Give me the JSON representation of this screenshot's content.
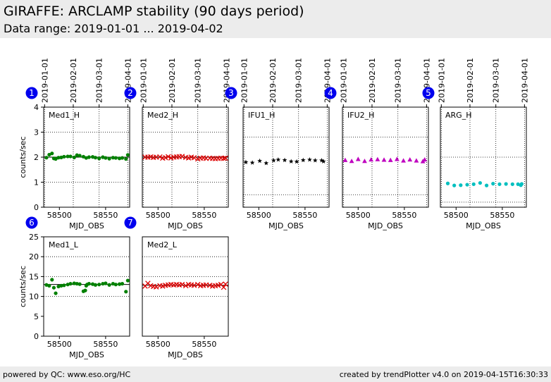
{
  "header": {
    "title": "GIRAFFE: ARCLAMP stability (90 days period)",
    "subtitle": "Data range: 2019-01-01 ... 2019-04-02"
  },
  "footer": {
    "left": "powered by QC: www.eso.org/HC",
    "right": "created by trendPlotter v4.0 on 2019-04-15T16:30:33"
  },
  "colors": {
    "green": "#008000",
    "red": "#dd0000",
    "black": "#000000",
    "magenta": "#bf00bf",
    "cyan": "#00bfbf",
    "badge": "#0000ee"
  },
  "chart_data": [
    {
      "type": "scatter",
      "number": "1",
      "label": "Med1_H",
      "marker": "circle",
      "color": "#008000",
      "xlabel": "MJD_OBS",
      "ylabel": "counts/sec",
      "xlim": [
        58483,
        58576
      ],
      "ylim": [
        0,
        4
      ],
      "yticks": [
        0,
        1,
        2,
        3,
        4
      ],
      "xticks": [
        58500,
        58550
      ],
      "hlines": [
        1,
        2,
        3
      ],
      "reference": 2,
      "date_ticks": [
        "2019-01-01",
        "2019-02-01",
        "2019-03-01",
        "2019-04-01"
      ],
      "x": [
        58486,
        58489,
        58492,
        58494,
        58496,
        58499,
        58502,
        58505,
        58509,
        58512,
        58516,
        58519,
        58522,
        58526,
        58529,
        58532,
        58536,
        58539,
        58543,
        58547,
        58550,
        58554,
        58558,
        58561,
        58565,
        58568,
        58572,
        58574
      ],
      "y": [
        1.98,
        2.1,
        2.15,
        1.95,
        1.93,
        1.98,
        1.99,
        2.02,
        2.03,
        2.03,
        1.99,
        2.08,
        2.06,
        2.02,
        1.97,
        2.0,
        2.01,
        1.98,
        1.95,
        2.0,
        1.97,
        1.94,
        1.98,
        1.97,
        1.95,
        1.97,
        1.93,
        2.09
      ]
    },
    {
      "type": "scatter",
      "number": "2",
      "label": "Med2_H",
      "marker": "x",
      "color": "#dd0000",
      "xlabel": "MJD_OBS",
      "ylabel": "",
      "xlim": [
        58483,
        58576
      ],
      "ylim": [
        0,
        4
      ],
      "yticks": [],
      "xticks": [
        58500,
        58550
      ],
      "hlines": [
        1,
        2,
        3
      ],
      "reference": 2,
      "date_ticks": [
        "2019-01-01",
        "2019-02-01",
        "2019-03-01",
        "2019-04-01"
      ],
      "x": [
        58486,
        58489,
        58492,
        58495,
        58498,
        58502,
        58505,
        58508,
        58511,
        58514,
        58517,
        58520,
        58523,
        58526,
        58530,
        58533,
        58536,
        58539,
        58543,
        58546,
        58549,
        58552,
        58556,
        58559,
        58562,
        58565,
        58568,
        58571,
        58573
      ],
      "y": [
        2.0,
        2.0,
        2.01,
        1.99,
        2.0,
        2.01,
        1.96,
        1.98,
        2.02,
        1.97,
        2.0,
        2.01,
        2.02,
        2.03,
        1.99,
        1.97,
        2.0,
        1.98,
        1.93,
        1.96,
        1.97,
        1.95,
        1.96,
        1.95,
        1.94,
        1.95,
        1.96,
        1.95,
        1.96
      ]
    },
    {
      "type": "scatter",
      "number": "3",
      "label": "IFU1_H",
      "marker": "star",
      "color": "#000000",
      "xlabel": "MJD_OBS",
      "ylabel": "",
      "xlim": [
        58483,
        58576
      ],
      "ylim": [
        0,
        4
      ],
      "yticks": [],
      "xticks": [
        58500,
        58550
      ],
      "hlines": [
        0.5,
        2.8
      ],
      "reference": null,
      "date_ticks": [
        "2019-01-01",
        "2019-02-01",
        "2019-03-01",
        "2019-04-01"
      ],
      "x": [
        58486,
        58493,
        58501,
        58508,
        58516,
        58521,
        58528,
        58535,
        58541,
        58548,
        58555,
        58561,
        58568,
        58570
      ],
      "y": [
        1.8,
        1.78,
        1.85,
        1.76,
        1.87,
        1.9,
        1.88,
        1.83,
        1.82,
        1.88,
        1.9,
        1.87,
        1.87,
        1.83
      ]
    },
    {
      "type": "scatter",
      "number": "4",
      "label": "IFU2_H",
      "marker": "triangle",
      "color": "#bf00bf",
      "xlabel": "MJD_OBS",
      "ylabel": "",
      "xlim": [
        58483,
        58576
      ],
      "ylim": [
        0,
        4
      ],
      "yticks": [],
      "xticks": [
        58500,
        58550
      ],
      "hlines": [
        0.5,
        2.8
      ],
      "reference": null,
      "date_ticks": [
        "2019-01-01",
        "2019-02-01",
        "2019-03-01",
        "2019-04-01"
      ],
      "x": [
        58486,
        58493,
        58500,
        58507,
        58514,
        58521,
        58528,
        58535,
        58542,
        58549,
        58556,
        58563,
        58570,
        58572
      ],
      "y": [
        1.88,
        1.84,
        1.92,
        1.84,
        1.9,
        1.91,
        1.89,
        1.88,
        1.92,
        1.86,
        1.9,
        1.86,
        1.83,
        1.9
      ]
    },
    {
      "type": "scatter",
      "number": "5",
      "label": "ARG_H",
      "marker": "circle",
      "color": "#00bfbf",
      "xlabel": "MJD_OBS",
      "ylabel": "",
      "xlim": [
        58483,
        58576
      ],
      "ylim": [
        0,
        4
      ],
      "yticks": [],
      "xticks": [
        58500,
        58550
      ],
      "hlines": [
        0.2,
        2.0
      ],
      "reference": null,
      "date_ticks": [
        "2019-01-01",
        "2019-02-01",
        "2019-03-01",
        "2019-04-01"
      ],
      "x": [
        58491,
        58498,
        58505,
        58512,
        58519,
        58526,
        58533,
        58540,
        58547,
        58554,
        58561,
        58567,
        58570,
        58571
      ],
      "y": [
        0.95,
        0.87,
        0.88,
        0.9,
        0.92,
        0.97,
        0.87,
        0.94,
        0.92,
        0.93,
        0.92,
        0.92,
        0.88,
        0.93
      ]
    },
    {
      "type": "scatter",
      "number": "6",
      "label": "Med1_L",
      "marker": "circle",
      "color": "#008000",
      "xlabel": "MJD_OBS",
      "ylabel": "counts/sec",
      "xlim": [
        58483,
        58576
      ],
      "ylim": [
        0,
        25
      ],
      "yticks": [
        0,
        5,
        10,
        15,
        20,
        25
      ],
      "xticks": [
        58500,
        58550
      ],
      "hlines": [
        10,
        15,
        20
      ],
      "reference": 13,
      "date_ticks": [],
      "x": [
        58486,
        58489,
        58492,
        58494,
        58496,
        58499,
        58502,
        58505,
        58509,
        58512,
        58516,
        58519,
        58522,
        58526,
        58528,
        58529,
        58530,
        58532,
        58536,
        58539,
        58543,
        58547,
        58550,
        58554,
        58558,
        58561,
        58565,
        58568,
        58572,
        58574
      ],
      "y": [
        12.9,
        12.7,
        14.2,
        12.2,
        10.8,
        12.5,
        12.7,
        12.8,
        13.0,
        13.2,
        13.3,
        13.2,
        13.1,
        11.3,
        11.5,
        12.7,
        13.0,
        13.2,
        13.1,
        12.9,
        13.0,
        13.2,
        13.3,
        12.9,
        13.2,
        13.0,
        13.1,
        13.2,
        11.2,
        14.0
      ]
    },
    {
      "type": "scatter",
      "number": "7",
      "label": "Med2_L",
      "marker": "x",
      "color": "#dd0000",
      "xlabel": "MJD_OBS",
      "ylabel": "",
      "xlim": [
        58483,
        58576
      ],
      "ylim": [
        0,
        25
      ],
      "yticks": [],
      "xticks": [
        58500,
        58550
      ],
      "hlines": [
        10,
        15,
        20
      ],
      "reference": 12.8,
      "date_ticks": [],
      "x": [
        58486,
        58489,
        58492,
        58495,
        58498,
        58502,
        58505,
        58508,
        58511,
        58514,
        58517,
        58520,
        58523,
        58526,
        58530,
        58533,
        58536,
        58539,
        58543,
        58546,
        58549,
        58552,
        58556,
        58559,
        58562,
        58565,
        58568,
        58571,
        58573
      ],
      "y": [
        12.6,
        13.3,
        12.7,
        12.5,
        12.4,
        12.7,
        12.6,
        12.8,
        12.9,
        13.0,
        12.9,
        13.0,
        12.9,
        13.0,
        12.7,
        13.0,
        12.9,
        12.8,
        13.0,
        12.7,
        12.8,
        12.9,
        12.8,
        12.6,
        12.7,
        12.8,
        13.0,
        12.3,
        13.1
      ]
    }
  ]
}
